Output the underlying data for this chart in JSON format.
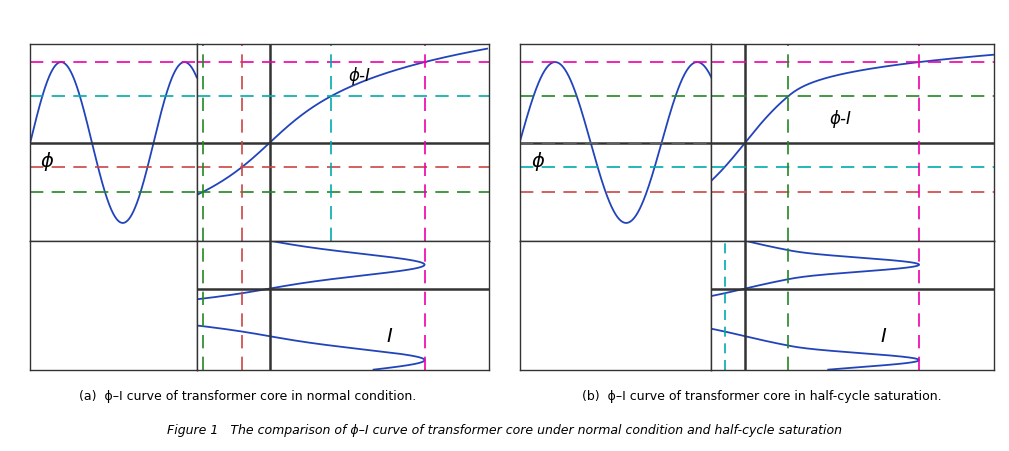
{
  "fig_width": 10.09,
  "fig_height": 4.52,
  "dpi": 100,
  "caption_a": "(a)  ϕ–I curve of transformer core in normal condition.",
  "caption_b": "(b)  ϕ–I curve of transformer core in half-cycle saturation.",
  "caption_main": "Figure 1   The comparison of ϕ–I curve of transformer core under normal condition and half-cycle saturation",
  "label_phi": "ϕ",
  "label_phi_I": "ϕ-I",
  "label_I": "I",
  "blue": "#2244bb",
  "magenta": "#ee00aa",
  "cyan": "#00aaaa",
  "red": "#cc4444",
  "green": "#228822",
  "gray_dark": "#333333",
  "gray_med": "#666666",
  "black": "#000000"
}
